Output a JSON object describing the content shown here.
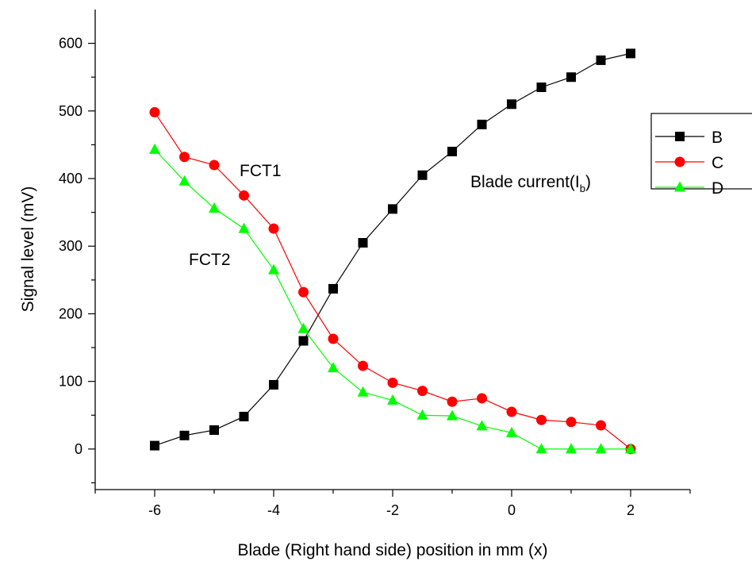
{
  "chart_data": {
    "type": "line",
    "xlabel": "Blade (Right hand side) position in mm (x)",
    "ylabel": "Signal level (mV)",
    "xlim": [
      -7,
      3
    ],
    "ylim": [
      -60,
      650
    ],
    "x_major_ticks": [
      -6,
      -4,
      -2,
      0,
      2
    ],
    "x_minor_ticks": [
      -7,
      -5,
      -3,
      -1,
      1,
      3
    ],
    "y_major_ticks": [
      0,
      100,
      200,
      300,
      400,
      500,
      600
    ],
    "y_minor_ticks": [
      -50,
      50,
      150,
      250,
      350,
      450,
      550
    ],
    "x_tick_labels": [
      "-6",
      "-4",
      "-2",
      "0",
      "2"
    ],
    "y_tick_labels": [
      "0",
      "100",
      "200",
      "300",
      "400",
      "500",
      "600"
    ],
    "x": [
      -6,
      -5.5,
      -5,
      -4.5,
      -4,
      -3.5,
      -3,
      -2.5,
      -2,
      -1.5,
      -1,
      -0.5,
      0,
      0.5,
      1,
      1.5,
      2
    ],
    "series": [
      {
        "name": "B",
        "color": "#000000",
        "marker": "square",
        "values": [
          5,
          20,
          28,
          48,
          95,
          160,
          237,
          305,
          355,
          405,
          440,
          480,
          510,
          535,
          550,
          575,
          585
        ]
      },
      {
        "name": "C",
        "color": "#ff0000",
        "marker": "circle",
        "values": [
          498,
          432,
          420,
          375,
          326,
          232,
          163,
          123,
          98,
          86,
          70,
          75,
          55,
          43,
          40,
          35,
          0
        ]
      },
      {
        "name": "D",
        "color": "#00ff00",
        "marker": "triangle",
        "values": [
          443,
          396,
          356,
          326,
          265,
          178,
          120,
          84,
          72,
          50,
          49,
          34,
          24,
          0,
          0,
          0,
          0
        ]
      }
    ],
    "annotations": {
      "fct1": "FCT1",
      "fct2": "FCT2",
      "blade_current": "Blade current(I",
      "blade_current_sub": "b",
      "blade_current_close": ")"
    },
    "legend": {
      "position": "right",
      "entries": [
        "B",
        "C",
        "D"
      ]
    },
    "grid": false
  }
}
